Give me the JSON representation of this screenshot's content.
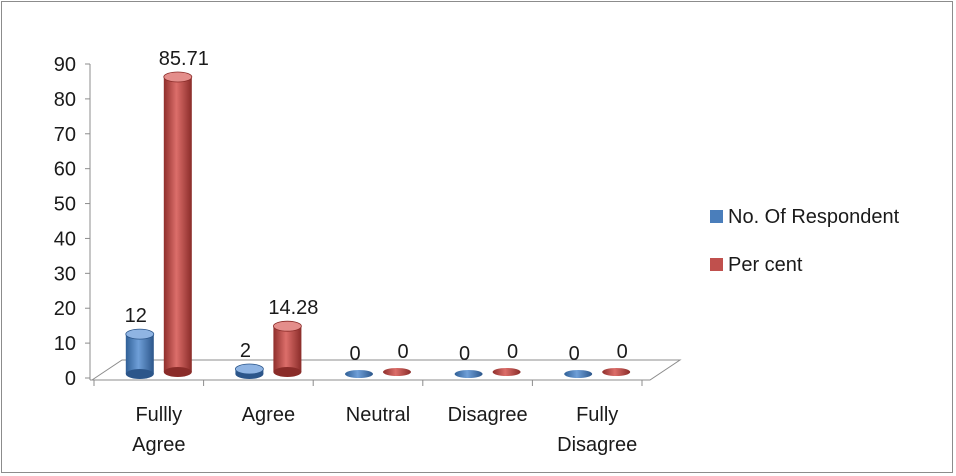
{
  "chart_data": {
    "type": "bar",
    "style": "3d-cylinder",
    "categories": [
      [
        "Fullly",
        "Agree"
      ],
      [
        "Agree"
      ],
      [
        "Neutral"
      ],
      [
        "Disagree"
      ],
      [
        "Fully",
        "Disagree"
      ]
    ],
    "series": [
      {
        "name": "No.  Of Respondent",
        "values": [
          12,
          2,
          0,
          0,
          0
        ],
        "labels": [
          "12",
          "2",
          "0",
          "0",
          "0"
        ],
        "color": "#4a7ebb"
      },
      {
        "name": "Per cent",
        "values": [
          85.71,
          14.28,
          0,
          0,
          0
        ],
        "labels": [
          "85.71",
          "14.28",
          "0",
          "0",
          "0"
        ],
        "color": "#c0504d"
      }
    ],
    "ylim": [
      0,
      90
    ],
    "yticks": [
      "0",
      "10",
      "20",
      "30",
      "40",
      "50",
      "60",
      "70",
      "80",
      "90"
    ],
    "legend": "right",
    "grid": false
  }
}
